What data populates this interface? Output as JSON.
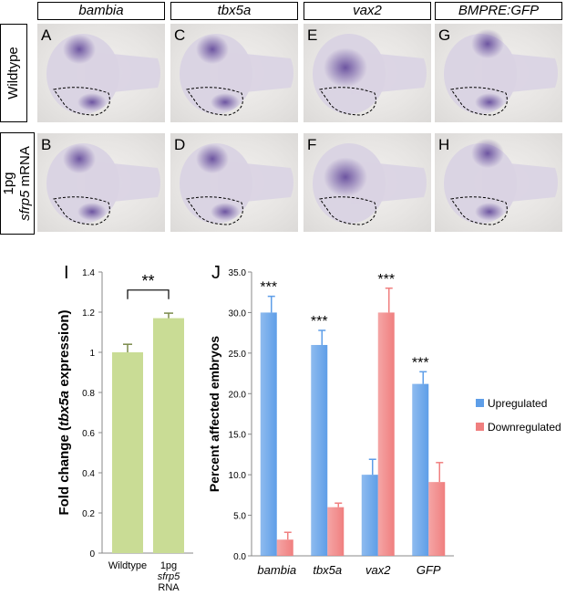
{
  "column_headers": [
    "bambia",
    "tbx5a",
    "vax2",
    "BMPRE:GFP"
  ],
  "row_labels": {
    "wildtype": "Wildtype",
    "treated_line1": "1pg",
    "treated_line2_italic": "sfrp5",
    "treated_line2_rest": " mRNA"
  },
  "panels": [
    {
      "label": "A",
      "row": 0,
      "col": 0
    },
    {
      "label": "C",
      "row": 0,
      "col": 1
    },
    {
      "label": "E",
      "row": 0,
      "col": 2
    },
    {
      "label": "G",
      "row": 0,
      "col": 3
    },
    {
      "label": "B",
      "row": 1,
      "col": 0
    },
    {
      "label": "D",
      "row": 1,
      "col": 1
    },
    {
      "label": "F",
      "row": 1,
      "col": 2
    },
    {
      "label": "H",
      "row": 1,
      "col": 3
    }
  ],
  "colors": {
    "stain": "#5a3f95",
    "embryo": "#d9d3e3",
    "bar_green": "#c9dc95",
    "up_blue": "#5e9ee8",
    "down_red": "#f07f7f"
  },
  "chart_data": [
    {
      "panel_label": "I",
      "type": "bar",
      "categories": [
        "Wildtype",
        "1pg sfrp5 RNA"
      ],
      "category_lines": [
        [
          "Wildtype"
        ],
        [
          "1pg",
          "sfrp5",
          "RNA"
        ]
      ],
      "values": [
        1.0,
        1.17
      ],
      "errors": [
        0.04,
        0.025
      ],
      "ylabel": "Fold change (tbx5a expression)",
      "ylabel_parts": [
        "Fold change (",
        "tbx5a",
        " expression)"
      ],
      "ylim": [
        0,
        1.4
      ],
      "yticks": [
        "0",
        "0.2",
        "0.4",
        "0.6",
        "0.8",
        "1",
        "1.2",
        "1.4"
      ],
      "significance": "**"
    },
    {
      "panel_label": "J",
      "type": "bar",
      "categories": [
        "bambia",
        "tbx5a",
        "vax2",
        "GFP"
      ],
      "series": [
        {
          "name": "Upregulated",
          "values": [
            30.0,
            26.0,
            10.0,
            21.2
          ],
          "errors": [
            2.0,
            1.8,
            1.9,
            1.5
          ]
        },
        {
          "name": "Downregulated",
          "values": [
            2.0,
            6.0,
            30.0,
            9.1
          ],
          "errors": [
            0.9,
            0.5,
            3.0,
            2.4
          ]
        }
      ],
      "ylabel": "Percent affected embryos",
      "ylim": [
        0,
        35
      ],
      "yticks": [
        "0.0",
        "5.0",
        "10.0",
        "15.0",
        "20.0",
        "25.0",
        "30.0",
        "35.0"
      ],
      "significance": [
        "***",
        "***",
        "***",
        "***"
      ],
      "legend_position": "right"
    }
  ]
}
